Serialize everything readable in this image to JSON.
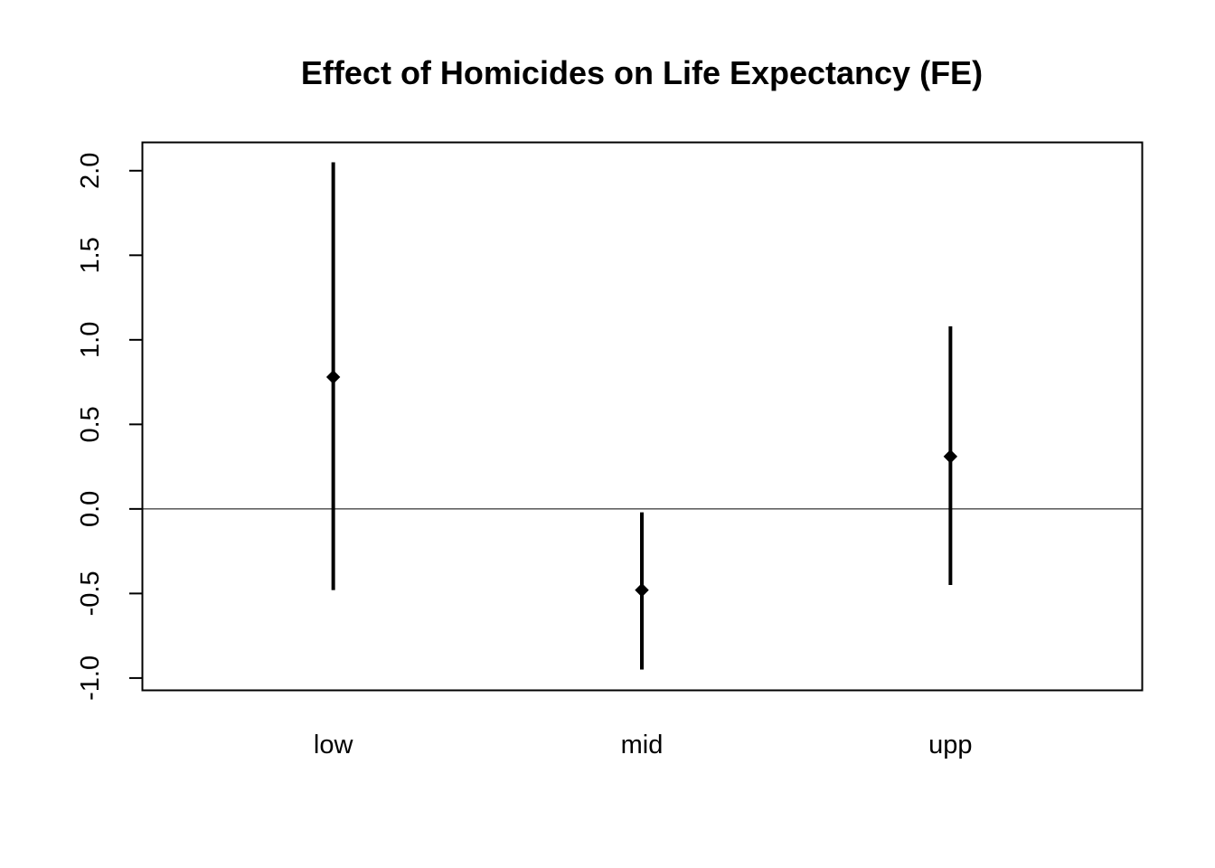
{
  "chart_data": {
    "type": "errorbar",
    "title": "Effect of Homicides on Life Expectancy (FE)",
    "xlabel": "",
    "ylabel": "",
    "categories": [
      "low",
      "mid",
      "upp"
    ],
    "estimates": [
      0.78,
      -0.48,
      0.31
    ],
    "lower": [
      -0.48,
      -0.95,
      -0.45
    ],
    "upper": [
      2.05,
      -0.02,
      1.08
    ],
    "ylim": [
      -1.07,
      2.17
    ],
    "yticks": [
      -1.0,
      -0.5,
      0.0,
      0.5,
      1.0,
      1.5,
      2.0
    ],
    "ytick_labels": [
      "-1.0",
      "-0.5",
      "0.0",
      "0.5",
      "1.0",
      "1.5",
      "2.0"
    ],
    "reference_line": 0,
    "grid": false,
    "legend": "none",
    "colors": {
      "marks": "#000000",
      "frame": "#000000",
      "reference_line": "#000000"
    }
  }
}
